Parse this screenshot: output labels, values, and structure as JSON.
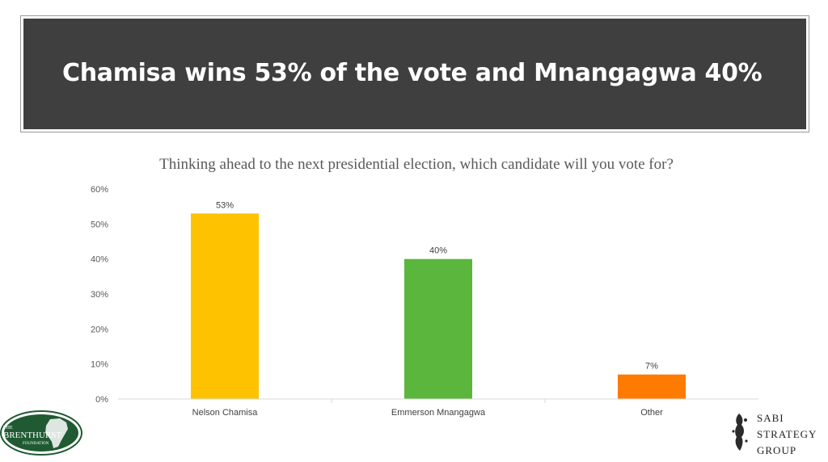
{
  "banner": {
    "title": "Chamisa wins 53% of the vote and Mnangagwa 40%"
  },
  "chart_data": {
    "type": "bar",
    "title": "Thinking ahead to the next presidential election, which candidate will you vote for?",
    "categories": [
      "Nelson Chamisa",
      "Emmerson Mnangagwa",
      "Other"
    ],
    "values": [
      53,
      40,
      7
    ],
    "data_labels": [
      "53%",
      "40%",
      "7%"
    ],
    "colors": [
      "#fec200",
      "#5ab63c",
      "#fe7a00"
    ],
    "ylim": [
      0,
      60
    ],
    "yticks": [
      0,
      10,
      20,
      30,
      40,
      50,
      60
    ],
    "ytick_labels": [
      "0%",
      "10%",
      "20%",
      "30%",
      "40%",
      "50%",
      "60%"
    ],
    "grid": false
  },
  "logos": {
    "left_top": "THE",
    "left_main": "BRENTHURST",
    "left_sub": "FOUNDATION",
    "right_line1": "SABI",
    "right_line2": "STRATEGY",
    "right_line3": "GROUP"
  }
}
